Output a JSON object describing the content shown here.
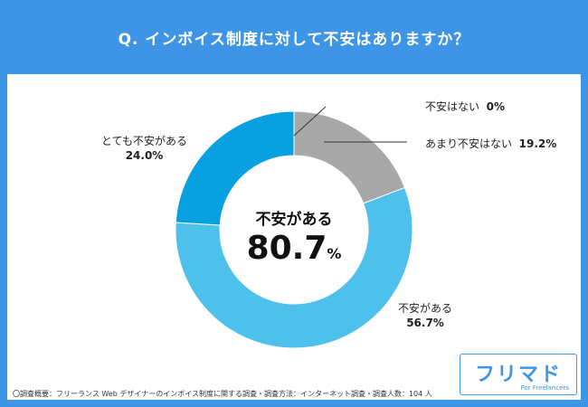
{
  "title": "Q. インボイス制度に対して不安はありますか？",
  "colors": {
    "frame": "#3f95e5",
    "very_anxious": "#08a0e0",
    "anxious": "#4dc1ec",
    "not_very": "#a8a8a8",
    "none": "#d0d0d0"
  },
  "center": {
    "text": "不安がある",
    "value": "80.7",
    "unit": "%"
  },
  "chart_data": {
    "type": "pie",
    "donut": true,
    "title": "Q. インボイス制度に対して不安はありますか？",
    "slices": [
      {
        "name": "不安はない",
        "value": 0.0,
        "value_label": "0%",
        "color": "#d0d0d0"
      },
      {
        "name": "あまり不安はない",
        "value": 19.2,
        "value_label": "19.2%",
        "color": "#a8a8a8"
      },
      {
        "name": "不安がある",
        "value": 56.7,
        "value_label": "56.7%",
        "color": "#4dc1ec"
      },
      {
        "name": "とても不安がある",
        "value": 24.0,
        "value_label": "24.0%",
        "color": "#08a0e0"
      }
    ],
    "start": "top",
    "direction": "clockwise"
  },
  "labels": {
    "none": {
      "name": "不安はない",
      "value": "0%"
    },
    "not_very": {
      "name": "あまり不安はない",
      "value": "19.2%"
    },
    "anxious": {
      "name": "不安がある",
      "value": "56.7%"
    },
    "very": {
      "name": "とても不安がある",
      "value": "24.0%"
    }
  },
  "footnote": "〇調査概要：フリーランス Web デザイナーのインボイス制度に関する調査・調査方法：インターネット調査・調査人数：104 人",
  "logo": {
    "main": "フリマド",
    "sub": "For Freelancers"
  }
}
